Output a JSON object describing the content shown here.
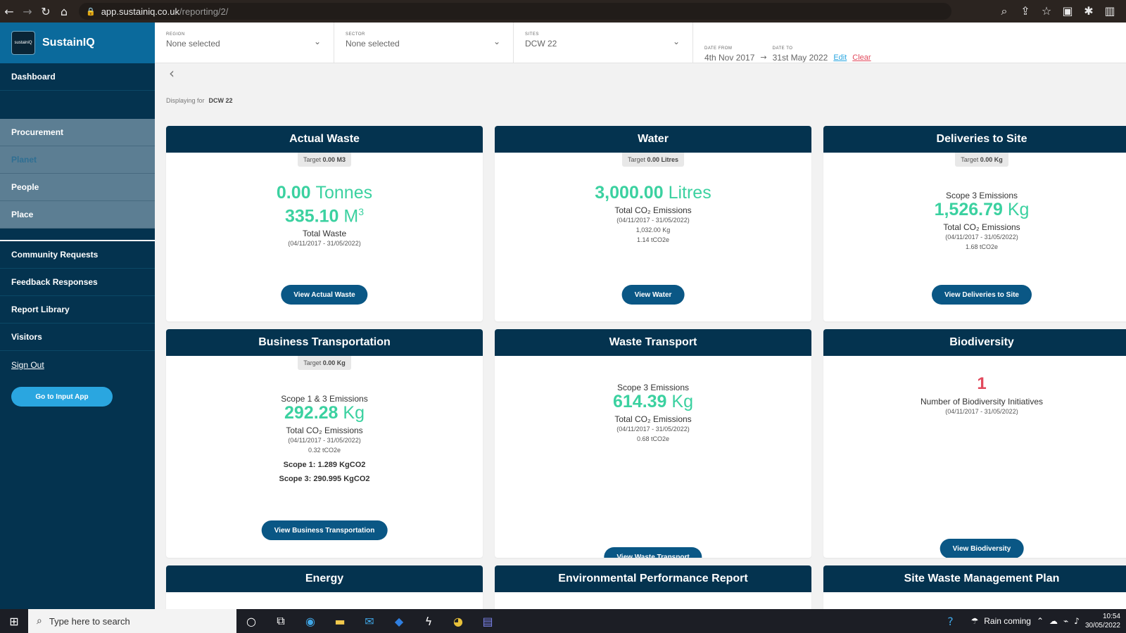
{
  "browser": {
    "url_host": "app.sustainiq.co.uk",
    "url_path": "/reporting/2/"
  },
  "brand": {
    "logo_text": "sustainiQ",
    "name": "SustainIQ"
  },
  "sidebar": {
    "dashboard": "Dashboard",
    "groups": [
      "Procurement",
      "Planet",
      "People",
      "Place"
    ],
    "links": [
      "Community Requests",
      "Feedback Responses",
      "Report Library",
      "Visitors"
    ],
    "sign_out": "Sign Out",
    "input_app": "Go to Input App"
  },
  "filters": {
    "region": {
      "label": "Region",
      "value": "None selected"
    },
    "sector": {
      "label": "Sector",
      "value": "None selected"
    },
    "sites": {
      "label": "Sites",
      "value": "DCW 22"
    },
    "date_from": {
      "label": "Date from",
      "value": "4th Nov 2017"
    },
    "date_to": {
      "label": "Date to",
      "value": "31st May 2022"
    },
    "edit": "Edit",
    "clear": "Clear"
  },
  "displaying": {
    "label": "Displaying for",
    "value": "DCW 22"
  },
  "cards": {
    "actual_waste": {
      "title": "Actual Waste",
      "target_label": "Target",
      "target_value": "0.00 M3",
      "value1": "0.00",
      "unit1": "Tonnes",
      "value2": "335.10",
      "unit2": "M",
      "unit2_sup": "3",
      "sub_title": "Total Waste",
      "range": "(04/11/2017 - 31/05/2022)",
      "button": "View Actual Waste"
    },
    "water": {
      "title": "Water",
      "target_label": "Target",
      "target_value": "0.00 Litres",
      "value": "3,000.00",
      "unit": "Litres",
      "sub_title": "Total CO₂ Emissions",
      "range": "(04/11/2017 - 31/05/2022)",
      "kg": "1,032.00 Kg",
      "tco2e": "1.14 tCO2e",
      "button": "View Water"
    },
    "deliveries": {
      "title": "Deliveries to Site",
      "target_label": "Target",
      "target_value": "0.00 Kg",
      "scope": "Scope 3 Emissions",
      "value": "1,526.79",
      "unit": "Kg",
      "sub_title": "Total CO₂ Emissions",
      "range": "(04/11/2017 - 31/05/2022)",
      "tco2e": "1.68 tCO2e",
      "button": "View Deliveries to Site"
    },
    "business_transport": {
      "title": "Business Transportation",
      "target_label": "Target",
      "target_value": "0.00 Kg",
      "scope": "Scope 1 & 3 Emissions",
      "value": "292.28",
      "unit": "Kg",
      "sub_title": "Total CO₂ Emissions",
      "range": "(04/11/2017 - 31/05/2022)",
      "tco2e": "0.32 tCO2e",
      "scope1": "Scope 1: 1.289 KgCO2",
      "scope3": "Scope 3: 290.995 KgCO2",
      "button": "View Business Transportation"
    },
    "waste_transport": {
      "title": "Waste Transport",
      "scope": "Scope 3 Emissions",
      "value": "614.39",
      "unit": "Kg",
      "sub_title": "Total CO₂ Emissions",
      "range": "(04/11/2017 - 31/05/2022)",
      "tco2e": "0.68 tCO2e",
      "button": "View Waste Transport"
    },
    "biodiversity": {
      "title": "Biodiversity",
      "value": "1",
      "sub_title": "Number of Biodiversity Initiatives",
      "range": "(04/11/2017 - 31/05/2022)",
      "button": "View Biodiversity"
    },
    "energy": {
      "title": "Energy"
    },
    "env_report": {
      "title": "Environmental Performance Report"
    },
    "swmp": {
      "title": "Site Waste Management Plan"
    }
  },
  "taskbar": {
    "search_placeholder": "Type here to search",
    "weather": "Rain coming",
    "time": "10:54",
    "date": "30/05/2022"
  }
}
